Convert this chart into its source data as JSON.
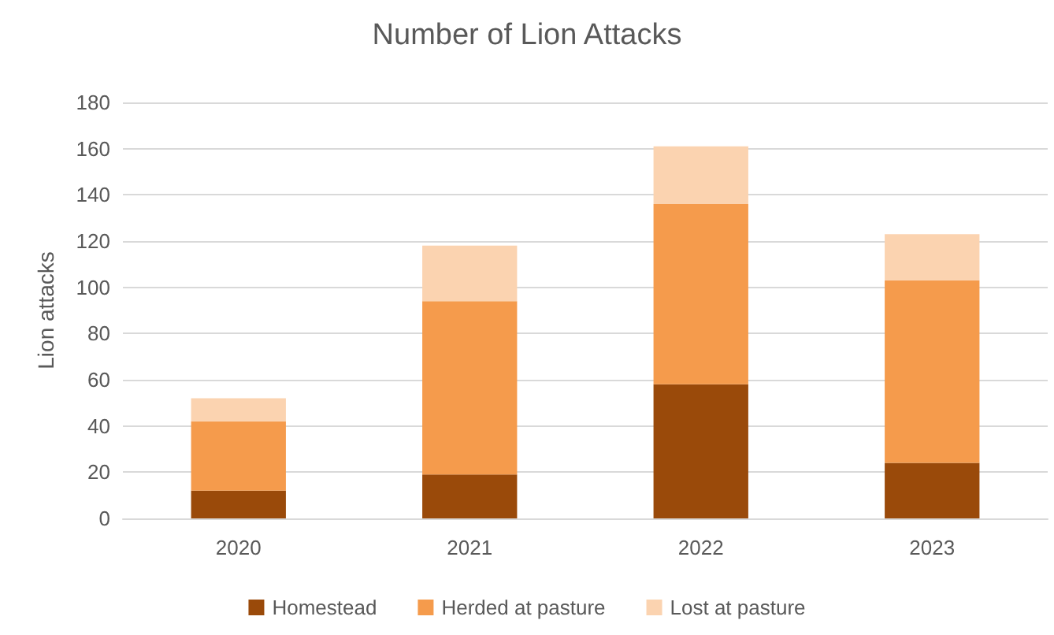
{
  "chart_data": {
    "type": "bar",
    "title": "Number of Lion Attacks",
    "ylabel": "Lion attacks",
    "categories": [
      "2020",
      "2021",
      "2022",
      "2023"
    ],
    "series": [
      {
        "name": "Homestead",
        "color": "#9a4a0a",
        "values": [
          12,
          19,
          58,
          24
        ]
      },
      {
        "name": "Herded at pasture",
        "color": "#f59b4c",
        "values": [
          30,
          75,
          78,
          79
        ]
      },
      {
        "name": "Lost at pasture",
        "color": "#fbd3b0",
        "values": [
          10,
          24,
          25,
          20
        ]
      }
    ],
    "stacked": true,
    "ylim": [
      0,
      180
    ],
    "yticks": [
      0,
      20,
      40,
      60,
      80,
      100,
      120,
      140,
      160,
      180
    ],
    "grid": "y",
    "legend": "bottom"
  }
}
